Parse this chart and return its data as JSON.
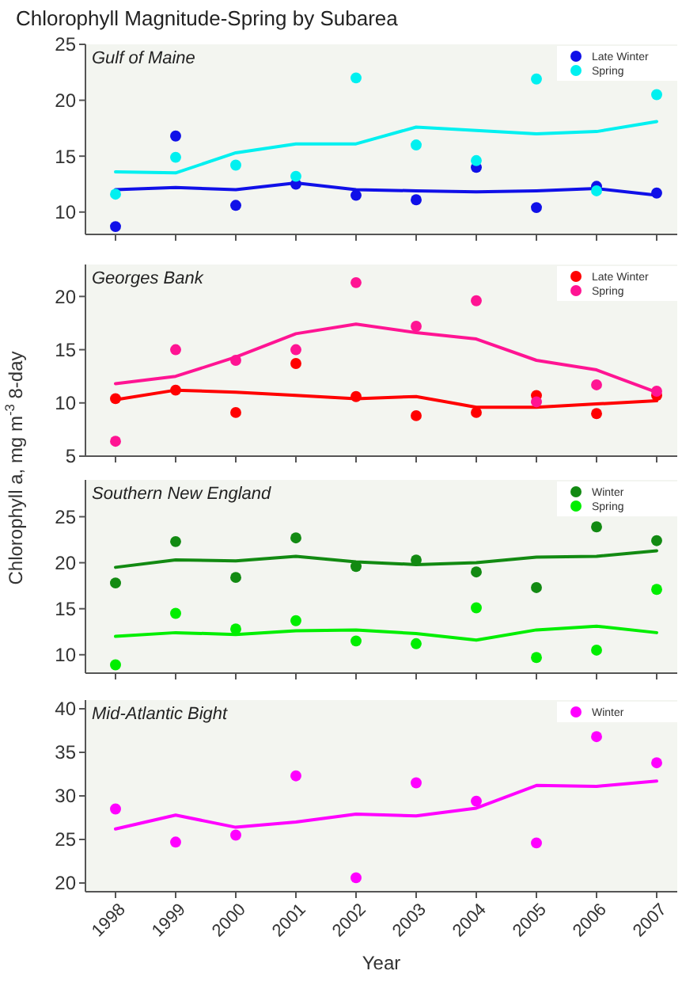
{
  "chart_data": [
    {
      "type": "scatter",
      "title": "Chlorophyll Magnitude-Spring by Subarea",
      "annotations": [
        "Gulf of Maine"
      ],
      "categories": [
        "1998",
        "1999",
        "2000",
        "2001",
        "2002",
        "2003",
        "2004",
        "2005",
        "2006",
        "2007"
      ],
      "ylim": [
        8,
        25
      ],
      "yticks": [
        10,
        15,
        20,
        25
      ],
      "tick_labels": "y",
      "legend": "top right",
      "grid": false,
      "series": [
        {
          "name": "Late Winter",
          "color": "#1010e8",
          "marker": "circle",
          "values": [
            8.7,
            16.8,
            10.6,
            12.5,
            11.5,
            11.1,
            14.0,
            10.4,
            12.3,
            11.7
          ]
        },
        {
          "name": "Spring",
          "color": "#00f0f0",
          "marker": "circle",
          "values": [
            11.6,
            14.9,
            14.2,
            13.2,
            22.0,
            16.0,
            14.6,
            21.9,
            11.9,
            20.5
          ]
        },
        {
          "type": "line",
          "color": "#1010e8",
          "values": [
            12.0,
            12.2,
            12.0,
            12.6,
            12.0,
            11.9,
            11.8,
            11.9,
            12.1,
            11.5
          ]
        },
        {
          "type": "line",
          "color": "#00f0f0",
          "values": [
            13.6,
            13.5,
            15.3,
            16.1,
            16.1,
            17.6,
            17.3,
            17.0,
            17.2,
            18.1
          ]
        }
      ]
    },
    {
      "type": "scatter",
      "annotations": [
        "Georges Bank"
      ],
      "ylabel": "Chlorophyll a, mg m$^{-3}$ 8-day",
      "categories": [
        "1998",
        "1999",
        "2000",
        "2001",
        "2002",
        "2003",
        "2004",
        "2005",
        "2006",
        "2007"
      ],
      "ylim": [
        5,
        23
      ],
      "yticks": [
        5,
        10,
        15,
        20
      ],
      "tick_labels": "y",
      "legend": "top right",
      "grid": false,
      "series": [
        {
          "name": "Late Winter",
          "color": "#ff0000",
          "marker": "circle",
          "values": [
            10.4,
            11.2,
            9.1,
            13.7,
            10.6,
            8.8,
            9.1,
            10.7,
            9.0,
            10.7
          ]
        },
        {
          "name": "Spring",
          "color": "#ff1493",
          "marker": "circle",
          "values": [
            6.4,
            15.0,
            14.0,
            15.0,
            21.3,
            17.2,
            19.6,
            10.1,
            11.7,
            11.1
          ]
        },
        {
          "type": "line",
          "color": "#ff0000",
          "values": [
            10.3,
            11.2,
            11.0,
            10.7,
            10.4,
            10.6,
            9.6,
            9.6,
            9.9,
            10.2
          ]
        },
        {
          "type": "line",
          "color": "#ff1493",
          "values": [
            11.8,
            12.5,
            14.3,
            16.5,
            17.4,
            16.6,
            16.0,
            14.0,
            13.1,
            11.0
          ]
        }
      ]
    },
    {
      "type": "scatter",
      "annotations": [
        "Southern New England"
      ],
      "categories": [
        "1998",
        "1999",
        "2000",
        "2001",
        "2002",
        "2003",
        "2004",
        "2005",
        "2006",
        "2007"
      ],
      "ylim": [
        8,
        29
      ],
      "yticks": [
        10,
        15,
        20,
        25
      ],
      "tick_labels": "y",
      "legend": "top right",
      "grid": false,
      "series": [
        {
          "name": "Winter",
          "color": "#128a12",
          "marker": "circle",
          "values": [
            17.8,
            22.3,
            18.4,
            22.7,
            19.6,
            20.3,
            19.0,
            17.3,
            23.9,
            22.4
          ]
        },
        {
          "name": "Spring",
          "color": "#00ee00",
          "marker": "circle",
          "values": [
            8.9,
            14.5,
            12.8,
            13.7,
            11.5,
            11.2,
            15.1,
            9.7,
            10.5,
            17.1
          ]
        },
        {
          "type": "line",
          "color": "#128a12",
          "values": [
            19.5,
            20.3,
            20.2,
            20.7,
            20.1,
            19.8,
            20.0,
            20.6,
            20.7,
            21.3
          ]
        },
        {
          "type": "line",
          "color": "#00ee00",
          "values": [
            12.0,
            12.4,
            12.2,
            12.6,
            12.7,
            12.3,
            11.6,
            12.7,
            13.1,
            12.4
          ]
        }
      ]
    },
    {
      "type": "scatter",
      "annotations": [
        "Mid-Atlantic Bight"
      ],
      "xlabel": "Year",
      "categories": [
        "1998",
        "1999",
        "2000",
        "2001",
        "2002",
        "2003",
        "2004",
        "2005",
        "2006",
        "2007"
      ],
      "ylim": [
        19,
        41
      ],
      "yticks": [
        20,
        25,
        30,
        35,
        40
      ],
      "legend": "top right",
      "grid": false,
      "series": [
        {
          "name": "Winter",
          "color": "#ff00ff",
          "marker": "circle",
          "values": [
            28.5,
            24.7,
            25.5,
            32.3,
            20.6,
            31.5,
            29.4,
            24.6,
            36.8,
            33.8
          ]
        },
        {
          "type": "line",
          "color": "#ff00ff",
          "values": [
            26.2,
            27.8,
            26.4,
            27.0,
            27.9,
            27.7,
            28.6,
            31.2,
            31.1,
            31.7
          ]
        }
      ]
    }
  ]
}
